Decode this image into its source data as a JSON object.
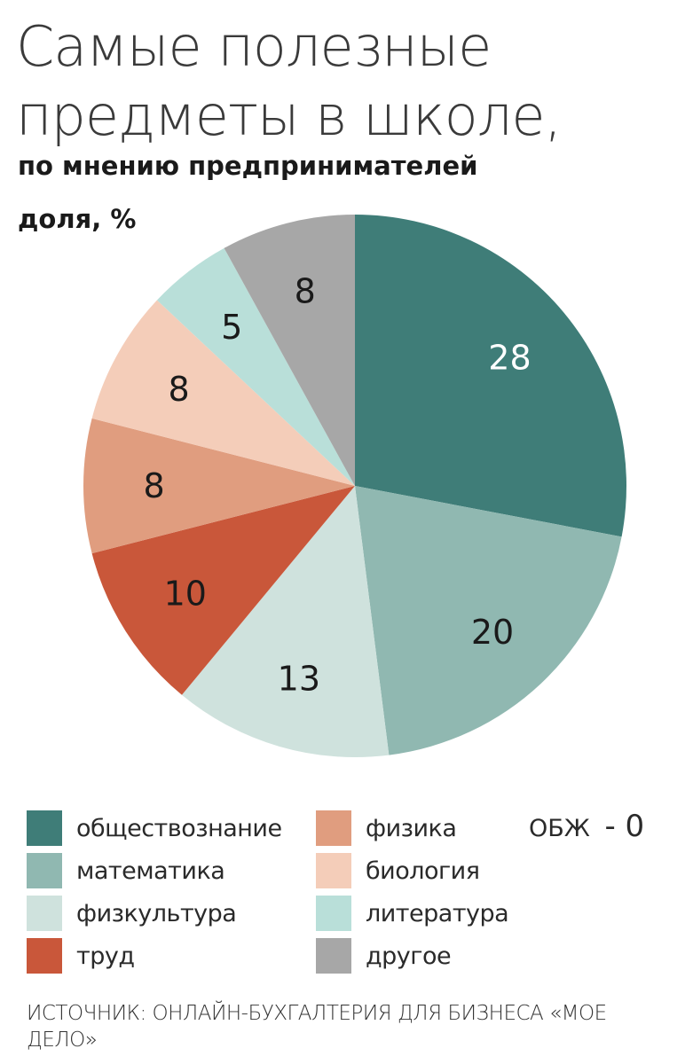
{
  "header": {
    "title": "Самые полезные предметы в школе,",
    "subtitle": "по мнению предпринимателей",
    "unit": "доля, %"
  },
  "chart_data": {
    "type": "pie",
    "title": "Самые полезные предметы в школе,",
    "subtitle": "по мнению предпринимателей",
    "unit": "доля, %",
    "categories": [
      "обществознание",
      "математика",
      "физкультура",
      "труд",
      "физика",
      "биология",
      "литература",
      "другое"
    ],
    "values": [
      28,
      20,
      13,
      10,
      8,
      8,
      5,
      8
    ],
    "colors": [
      "#3f7d78",
      "#90b8b1",
      "#cfe2dd",
      "#c9573a",
      "#e09d7f",
      "#f4cdb9",
      "#b9dfd9",
      "#a7a7a7"
    ],
    "label_colors": [
      "#ffffff",
      "#1a1a1a",
      "#1a1a1a",
      "#1a1a1a",
      "#1a1a1a",
      "#1a1a1a",
      "#1a1a1a",
      "#1a1a1a"
    ],
    "legend_position": "bottom",
    "start": "top",
    "direction": "clockwise"
  },
  "note": {
    "label": "ОБЖ",
    "value": "- 0"
  },
  "source": {
    "text": "ИСТОЧНИК: ОНЛАЙН-БУХГАЛТЕРИЯ ДЛЯ БИЗНЕСА «МОЕ ДЕЛО»"
  }
}
